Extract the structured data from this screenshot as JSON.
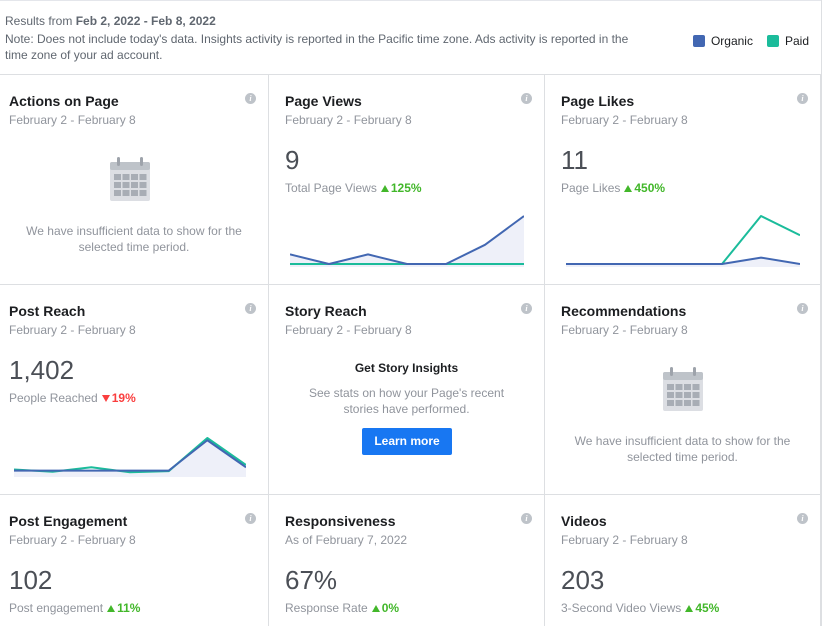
{
  "header": {
    "results_prefix": "Results from ",
    "results_range": "Feb 2, 2022 - Feb 8, 2022",
    "note": "Note: Does not include today's data. Insights activity is reported in the Pacific time zone. Ads activity is reported in the time zone of your ad account.",
    "legend": [
      {
        "label": "Organic",
        "color": "#4267b2"
      },
      {
        "label": "Paid",
        "color": "#1bbc9b"
      }
    ]
  },
  "cards": {
    "actions_on_page": {
      "title": "Actions on Page",
      "sub": "February 2 - February 8",
      "empty": "We have insufficient data to show for the selected time period."
    },
    "page_views": {
      "title": "Page Views",
      "sub": "February 2 - February 8",
      "value": "9",
      "label": "Total Page Views",
      "delta": "125%",
      "direction": "up"
    },
    "page_likes": {
      "title": "Page Likes",
      "sub": "February 2 - February 8",
      "value": "11",
      "label": "Page Likes",
      "delta": "450%",
      "direction": "up"
    },
    "post_reach": {
      "title": "Post Reach",
      "sub": "February 2 - February 8",
      "value": "1,402",
      "label": "People Reached",
      "delta": "19%",
      "direction": "down"
    },
    "story_reach": {
      "title": "Story Reach",
      "sub": "February 2 - February 8",
      "heading": "Get Story Insights",
      "text": "See stats on how your Page's recent stories have performed.",
      "button": "Learn more"
    },
    "recommendations": {
      "title": "Recommendations",
      "sub": "February 2 - February 8",
      "empty": "We have insufficient data to show for the selected time period."
    },
    "post_engagement": {
      "title": "Post Engagement",
      "sub": "February 2 - February 8",
      "value": "102",
      "label": "Post engagement",
      "delta": "11%",
      "direction": "up"
    },
    "responsiveness": {
      "title": "Responsiveness",
      "sub": "As of February 7, 2022",
      "value": "67%",
      "label": "Response Rate",
      "delta": "0%",
      "direction": "up"
    },
    "videos": {
      "title": "Videos",
      "sub": "February 2 - February 8",
      "value": "203",
      "label": "3-Second Video Views",
      "delta": "45%",
      "direction": "up"
    }
  },
  "sparklines": {
    "page_views": {
      "organic": [
        0.3,
        0.0,
        0.3,
        0.0,
        0.0,
        0.6,
        1.5
      ],
      "paid": [
        0,
        0,
        0,
        0,
        0,
        0,
        0
      ]
    },
    "page_likes": {
      "organic": [
        0,
        0,
        0,
        0,
        0,
        0.4,
        0
      ],
      "paid": [
        0,
        0,
        0,
        0,
        0,
        3,
        1.8
      ]
    },
    "post_reach": {
      "organic": [
        60,
        60,
        60,
        60,
        60,
        600,
        120
      ],
      "paid": [
        80,
        40,
        120,
        30,
        50,
        640,
        160
      ]
    }
  },
  "colors": {
    "organic": "#4267b2",
    "paid": "#1bbc9b",
    "organic_fill": "#eef0f9"
  }
}
